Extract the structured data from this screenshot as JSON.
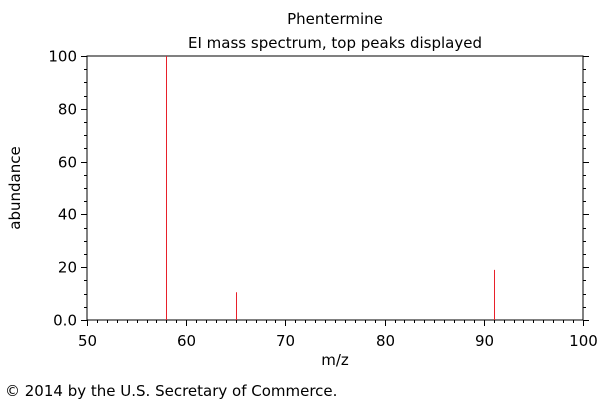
{
  "chart_data": {
    "type": "bar",
    "title": "Phentermine",
    "subtitle": "EI mass spectrum, top peaks displayed",
    "xlabel": "m/z",
    "ylabel": "abundance",
    "xlim": [
      50,
      100
    ],
    "ylim": [
      0,
      100
    ],
    "x_ticks": [
      "50",
      "60",
      "70",
      "80",
      "90",
      "100"
    ],
    "y_ticks": [
      "0.0",
      "20",
      "40",
      "60",
      "80",
      "100"
    ],
    "grid": false,
    "series": [
      {
        "x": [
          58,
          65,
          91
        ],
        "values": [
          100,
          10.5,
          19
        ],
        "color": "#e8202a"
      }
    ]
  },
  "footer": {
    "copyright": "© 2014 by the U.S. Secretary of Commerce."
  }
}
